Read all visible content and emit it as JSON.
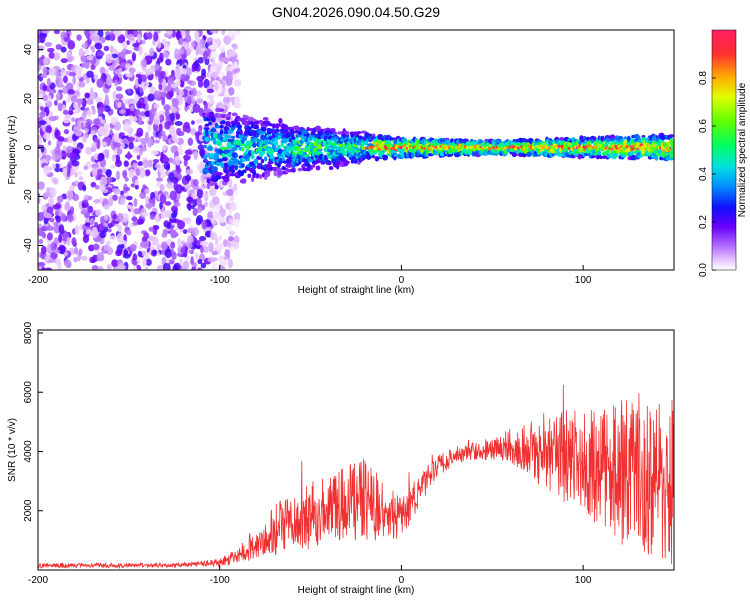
{
  "title": "GN04.2026.090.04.50.G29",
  "chart_data": [
    {
      "type": "heatmap",
      "xlabel": "Height of straight line (km)",
      "ylabel": "Frequency (Hz)",
      "xlim": [
        -200,
        150
      ],
      "ylim": [
        -50,
        48
      ],
      "x_ticks": [
        -200,
        -100,
        0,
        100
      ],
      "y_ticks": [
        -40,
        -20,
        0,
        20,
        40
      ],
      "colorbar": {
        "label": "Normalized spectral amplitude",
        "range": [
          0,
          1
        ],
        "ticks": [
          "0.0",
          "0.2",
          "0.4",
          "0.6",
          "0.8"
        ]
      },
      "description_values": {
        "noise_region_km": [
          -200,
          -90
        ],
        "signal_center_freq_hz": 0,
        "signal_band_halfwidth_hz": [
          [
            -105,
            12
          ],
          [
            -50,
            6
          ],
          [
            0,
            3
          ],
          [
            50,
            2
          ],
          [
            100,
            3
          ],
          [
            150,
            4
          ]
        ]
      }
    },
    {
      "type": "line",
      "xlabel": "Height of straight line (km)",
      "ylabel": "SNR (10 * v/v)",
      "xlim": [
        -200,
        150
      ],
      "ylim": [
        0,
        8100
      ],
      "x_ticks": [
        -200,
        -100,
        0,
        100
      ],
      "y_ticks": [
        2000,
        4000,
        6000,
        8000
      ],
      "series": [
        {
          "name": "SNR",
          "color": "#f03030",
          "envelope_x": [
            -200,
            -120,
            -100,
            -90,
            -80,
            -70,
            -60,
            -50,
            -40,
            -30,
            -20,
            -10,
            0,
            10,
            20,
            30,
            40,
            50,
            60,
            70,
            80,
            90,
            100,
            110,
            120,
            130,
            140,
            150
          ],
          "envelope_mean": [
            150,
            160,
            250,
            500,
            900,
            1300,
            1600,
            1800,
            2100,
            2300,
            2400,
            2000,
            1700,
            2700,
            3500,
            3900,
            4000,
            4100,
            4200,
            4100,
            4000,
            3800,
            3600,
            3400,
            3300,
            3200,
            3000,
            2900
          ],
          "envelope_spread": [
            80,
            80,
            150,
            300,
            600,
            900,
            1000,
            1100,
            1200,
            1300,
            1400,
            1000,
            700,
            600,
            400,
            300,
            300,
            400,
            600,
            900,
            1400,
            1700,
            1800,
            2000,
            2400,
            2800,
            3000,
            3100
          ]
        }
      ]
    }
  ]
}
